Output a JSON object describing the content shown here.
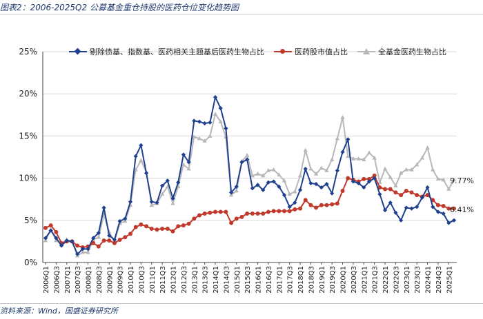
{
  "figure": {
    "title": "图表2：2006-2025Q2 公募基金重仓持股的医药仓位变化趋势图",
    "source": "资料来源：Wind，国盛证券研究所"
  },
  "chart_data": {
    "type": "line",
    "ylim": [
      0,
      25
    ],
    "yticks": [
      "0%",
      "5%",
      "10%",
      "15%",
      "20%",
      "25%"
    ],
    "ytick_values": [
      0,
      5,
      10,
      15,
      20,
      25
    ],
    "xtick_labels": [
      "2006Q1",
      "2006Q3",
      "2007Q1",
      "2007Q3",
      "2008Q1",
      "2008Q3",
      "2009Q1",
      "2009Q3",
      "2010Q1",
      "2010Q3",
      "2011Q1",
      "2011Q3",
      "2012Q1",
      "2012Q3",
      "2013Q1",
      "2013Q3",
      "2014Q1",
      "2014Q3",
      "2015Q1",
      "2015Q3",
      "2016Q1",
      "2016Q3",
      "2017Q1",
      "2017Q3",
      "2018Q1",
      "2018Q3",
      "2019Q1",
      "2019Q3",
      "2020Q1",
      "2020Q3",
      "2021Q1",
      "2021Q3",
      "2022Q1",
      "2022Q3",
      "2023Q1",
      "2023Q3",
      "2024Q1",
      "2024Q3",
      "2025Q1"
    ],
    "grid": true,
    "legend_position": "top",
    "series": [
      {
        "name": "剔除债基、指数基、医药相关主题基后医药生物占比",
        "color": "#1f3f8f",
        "marker": "diamond",
        "values": [
          2.9,
          3.8,
          2.9,
          2.0,
          2.6,
          2.5,
          1.0,
          1.6,
          1.6,
          2.9,
          3.5,
          6.5,
          3.2,
          2.7,
          4.9,
          5.2,
          7.2,
          12.6,
          13.9,
          10.6,
          7.2,
          7.1,
          9.1,
          9.7,
          7.6,
          9.5,
          12.8,
          11.9,
          16.8,
          16.7,
          16.5,
          16.6,
          19.6,
          18.3,
          15.9,
          8.3,
          9.0,
          11.9,
          12.2,
          8.8,
          9.2,
          8.6,
          9.5,
          9.6,
          9.0,
          8.0,
          6.6,
          7.1,
          8.6,
          11.1,
          9.4,
          9.3,
          8.9,
          9.3,
          8.2,
          10.9,
          13.1,
          14.6,
          9.6,
          9.4,
          8.9,
          9.6,
          10.0,
          8.1,
          6.2,
          7.1,
          5.9,
          5.0,
          6.5,
          6.4,
          6.6,
          7.7,
          8.9,
          6.6,
          6.0,
          5.8,
          4.7,
          5.0
        ]
      },
      {
        "name": "医药股市值占比",
        "color": "#c0392b",
        "marker": "circle",
        "values": [
          4.1,
          4.4,
          3.6,
          2.3,
          2.5,
          2.5,
          2.0,
          1.8,
          1.9,
          2.3,
          1.9,
          2.6,
          2.6,
          2.3,
          2.7,
          3.0,
          3.4,
          4.2,
          4.5,
          4.3,
          4.0,
          3.9,
          4.0,
          4.0,
          3.7,
          4.3,
          4.4,
          4.6,
          5.2,
          5.6,
          5.8,
          5.9,
          6.0,
          6.0,
          6.0,
          4.7,
          5.2,
          5.4,
          5.8,
          5.8,
          5.8,
          5.8,
          6.0,
          6.1,
          6.1,
          6.1,
          6.1,
          6.3,
          6.4,
          7.4,
          6.8,
          6.5,
          6.8,
          6.8,
          6.9,
          7.0,
          8.5,
          10.0,
          9.8,
          9.6,
          9.9,
          9.9,
          10.3,
          8.9,
          8.7,
          8.7,
          8.3,
          8.0,
          8.5,
          8.3,
          8.0,
          7.8,
          8.0,
          7.4,
          6.8,
          6.7,
          6.4,
          6.4
        ]
      },
      {
        "name": "全基金医药生物占比",
        "color": "#b8b8b8",
        "marker": "triangle",
        "values": [
          2.6,
          3.9,
          2.6,
          2.3,
          2.7,
          2.5,
          0.8,
          1.2,
          1.2,
          2.7,
          3.0,
          5.7,
          3.6,
          2.5,
          4.6,
          4.9,
          6.8,
          11.0,
          12.1,
          10.7,
          6.8,
          7.0,
          8.1,
          9.0,
          7.0,
          9.0,
          11.6,
          11.1,
          14.9,
          14.7,
          14.4,
          15.0,
          17.6,
          16.7,
          14.9,
          8.0,
          8.5,
          12.0,
          12.7,
          10.3,
          10.5,
          10.3,
          10.9,
          11.0,
          10.4,
          9.7,
          8.1,
          8.4,
          10.3,
          13.3,
          11.1,
          10.5,
          11.2,
          10.9,
          12.2,
          14.7,
          17.2,
          12.6,
          12.3,
          12.3,
          12.2,
          13.0,
          12.4,
          9.5,
          11.1,
          10.1,
          9.1,
          10.6,
          11.0,
          11.0,
          11.6,
          12.4,
          13.6,
          11.0,
          9.9,
          9.8,
          8.7,
          9.8
        ]
      }
    ],
    "annotations": [
      {
        "text": "9.77%",
        "series": 2
      },
      {
        "text": "6.41%",
        "series": 1
      }
    ]
  }
}
